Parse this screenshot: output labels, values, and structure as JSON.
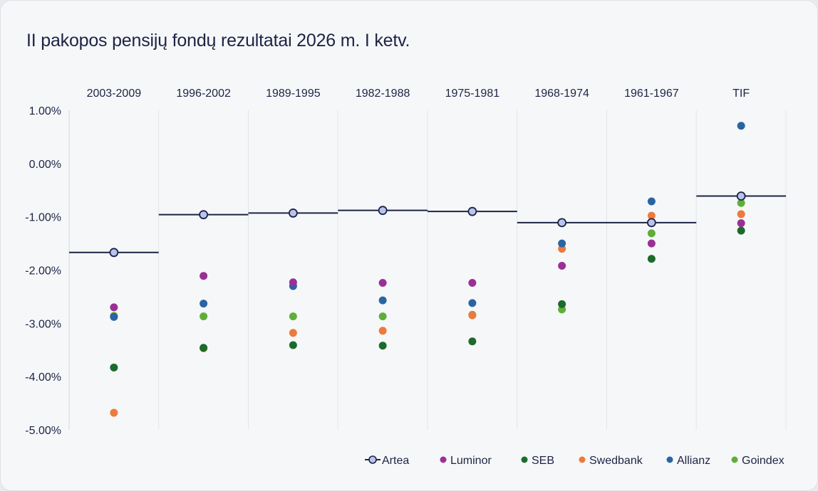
{
  "title": "II pakopos pensijų fondų rezultatai 2026 m. I ketv.",
  "chart_data": {
    "type": "scatter",
    "title": "II pakopos pensijų fondų rezultatai 2026 m. I ketv.",
    "categories": [
      "2003-2009",
      "1996-2002",
      "1989-1995",
      "1982-1988",
      "1975-1981",
      "1968-1974",
      "1961-1967",
      "TIF"
    ],
    "y_ticks": [
      "1.00%",
      "0.00%",
      "-1.00%",
      "-2.00%",
      "-3.00%",
      "-4.00%",
      "-5.00%"
    ],
    "ylim": [
      -5,
      1
    ],
    "y_unit": "%",
    "grid": false,
    "legend_position": "bottom-right",
    "series": [
      {
        "name": "Artea",
        "color": "#1d2444",
        "fill": "#b8c3ee",
        "marker": "ring-line",
        "values": [
          -1.67,
          -0.96,
          -0.93,
          -0.88,
          -0.9,
          -1.11,
          -1.11,
          -0.61
        ]
      },
      {
        "name": "Luminor",
        "color": "#9b2f96",
        "values": [
          -2.7,
          -2.11,
          -2.23,
          -2.24,
          -2.24,
          -1.92,
          -1.5,
          -1.12
        ]
      },
      {
        "name": "SEB",
        "color": "#1b6b2a",
        "values": [
          -3.83,
          -3.46,
          -3.41,
          -3.42,
          -3.34,
          -2.64,
          -1.79,
          -1.26
        ]
      },
      {
        "name": "Swedbank",
        "color": "#ec7a3c",
        "values": [
          -4.68,
          -3.47,
          -3.18,
          -3.14,
          -2.85,
          -1.6,
          -0.98,
          -0.95
        ]
      },
      {
        "name": "Allianz",
        "color": "#2a64a3",
        "values": [
          -2.88,
          -2.63,
          -2.3,
          -2.57,
          -2.62,
          -1.5,
          -0.71,
          0.71
        ]
      },
      {
        "name": "Goindex",
        "color": "#5fae3a",
        "values": [
          -2.86,
          -2.87,
          -2.87,
          -2.87,
          -2.84,
          -2.74,
          -1.31,
          -0.74
        ]
      }
    ]
  }
}
